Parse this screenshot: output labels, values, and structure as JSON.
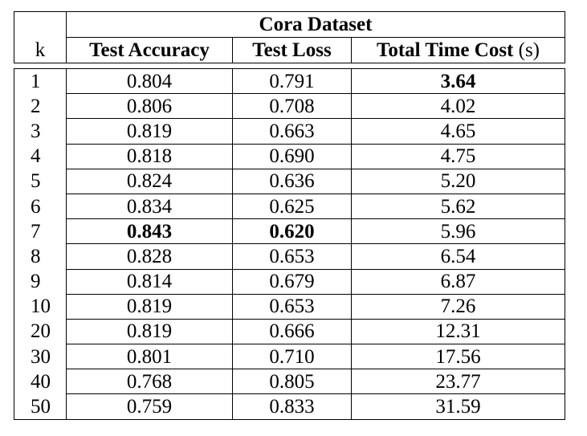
{
  "table": {
    "group_header": "Cora Dataset",
    "k_header": "k",
    "columns": {
      "accuracy": "Test Accuracy",
      "loss": "Test Loss",
      "time": "Total Time Cost",
      "time_unit": "(s)"
    },
    "rows": [
      {
        "k": "1",
        "accuracy": "0.804",
        "loss": "0.791",
        "time": "3.64"
      },
      {
        "k": "2",
        "accuracy": "0.806",
        "loss": "0.708",
        "time": "4.02"
      },
      {
        "k": "3",
        "accuracy": "0.819",
        "loss": "0.663",
        "time": "4.65"
      },
      {
        "k": "4",
        "accuracy": "0.818",
        "loss": "0.690",
        "time": "4.75"
      },
      {
        "k": "5",
        "accuracy": "0.824",
        "loss": "0.636",
        "time": "5.20"
      },
      {
        "k": "6",
        "accuracy": "0.834",
        "loss": "0.625",
        "time": "5.62"
      },
      {
        "k": "7",
        "accuracy": "0.843",
        "loss": "0.620",
        "time": "5.96"
      },
      {
        "k": "8",
        "accuracy": "0.828",
        "loss": "0.653",
        "time": "6.54"
      },
      {
        "k": "9",
        "accuracy": "0.814",
        "loss": "0.679",
        "time": "6.87"
      },
      {
        "k": "10",
        "accuracy": "0.819",
        "loss": "0.653",
        "time": "7.26"
      },
      {
        "k": "20",
        "accuracy": "0.819",
        "loss": "0.666",
        "time": "12.31"
      },
      {
        "k": "30",
        "accuracy": "0.801",
        "loss": "0.710",
        "time": "17.56"
      },
      {
        "k": "40",
        "accuracy": "0.768",
        "loss": "0.805",
        "time": "23.77"
      },
      {
        "k": "50",
        "accuracy": "0.759",
        "loss": "0.833",
        "time": "31.59"
      }
    ]
  }
}
